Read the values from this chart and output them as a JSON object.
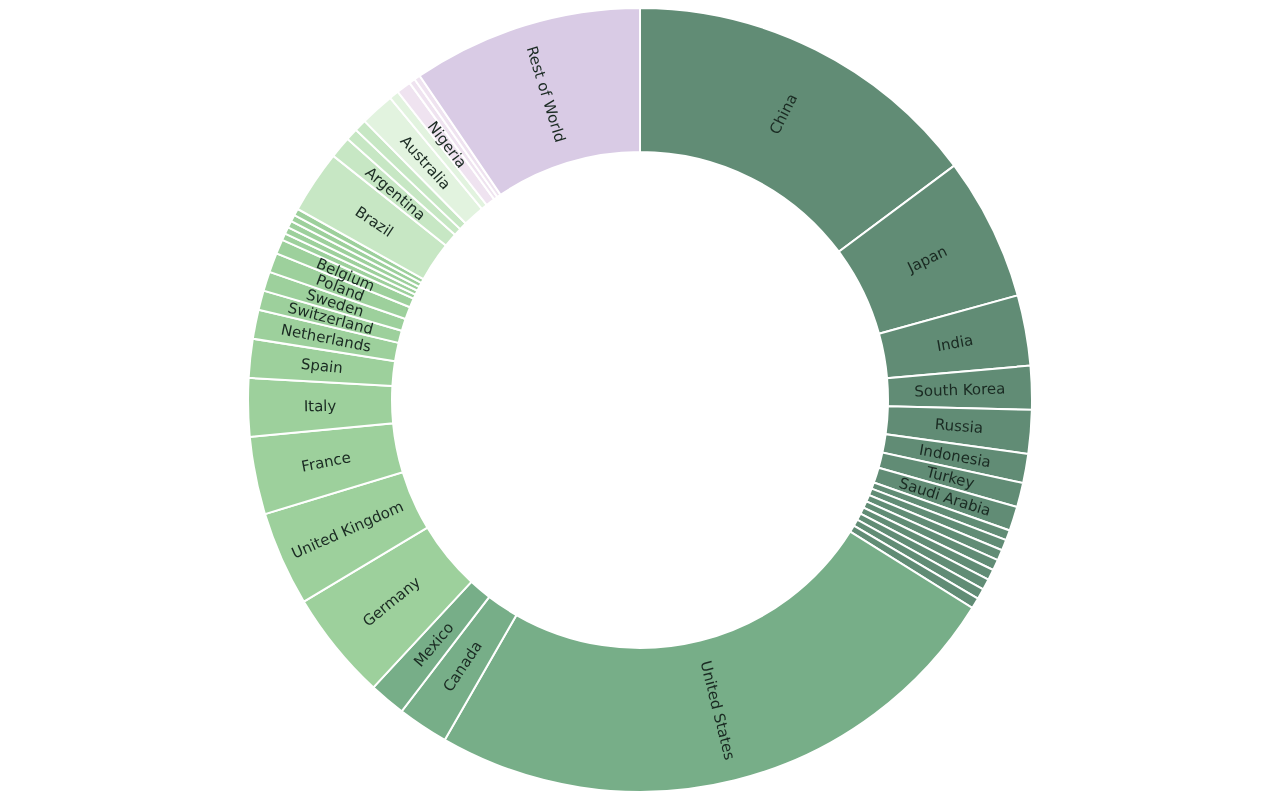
{
  "chart_data": {
    "type": "donut",
    "categories": [
      "China",
      "Japan",
      "India",
      "South Korea",
      "Russia",
      "Indonesia",
      "Turkey",
      "Saudi Arabia",
      null,
      null,
      null,
      null,
      null,
      null,
      null,
      null,
      "United States",
      "Canada",
      "Mexico",
      "Germany",
      "United Kingdom",
      "France",
      "Italy",
      "Spain",
      "Netherlands",
      "Switzerland",
      "Sweden",
      "Poland",
      "Belgium",
      null,
      null,
      null,
      null,
      null,
      "Brazil",
      "Argentina",
      null,
      null,
      "Australia",
      null,
      "Nigeria",
      null,
      null,
      "Rest of World"
    ],
    "values": [
      14.8,
      5.9,
      2.9,
      1.8,
      1.8,
      1.2,
      1.0,
      1.0,
      0.42,
      0.44,
      0.44,
      0.44,
      0.44,
      0.44,
      0.44,
      0.44,
      24.4,
      2.1,
      1.5,
      4.5,
      3.9,
      3.2,
      2.4,
      1.6,
      1.2,
      0.8,
      0.8,
      0.8,
      0.6,
      0.28,
      0.28,
      0.28,
      0.28,
      0.28,
      2.6,
      0.9,
      0.5,
      0.5,
      1.4,
      0.4,
      0.6,
      0.25,
      0.25,
      9.5
    ],
    "colors": [
      "#618c75",
      "#618c75",
      "#618c75",
      "#618c75",
      "#618c75",
      "#618c75",
      "#618c75",
      "#618c75",
      "#618c75",
      "#618c75",
      "#618c75",
      "#618c75",
      "#618c75",
      "#618c75",
      "#618c75",
      "#618c75",
      "#77ae88",
      "#77ae88",
      "#77ae88",
      "#9dd09c",
      "#9dd09c",
      "#9dd09c",
      "#9dd09c",
      "#9dd09c",
      "#9dd09c",
      "#9dd09c",
      "#9dd09c",
      "#9dd09c",
      "#9dd09c",
      "#9dd09c",
      "#9dd09c",
      "#9dd09c",
      "#9dd09c",
      "#9dd09c",
      "#c7e7c4",
      "#c7e7c4",
      "#c7e7c4",
      "#c7e7c4",
      "#e2f3df",
      "#e2f3df",
      "#efe3f0",
      "#efe3f0",
      "#efe3f0",
      "#d9cbe5"
    ]
  }
}
